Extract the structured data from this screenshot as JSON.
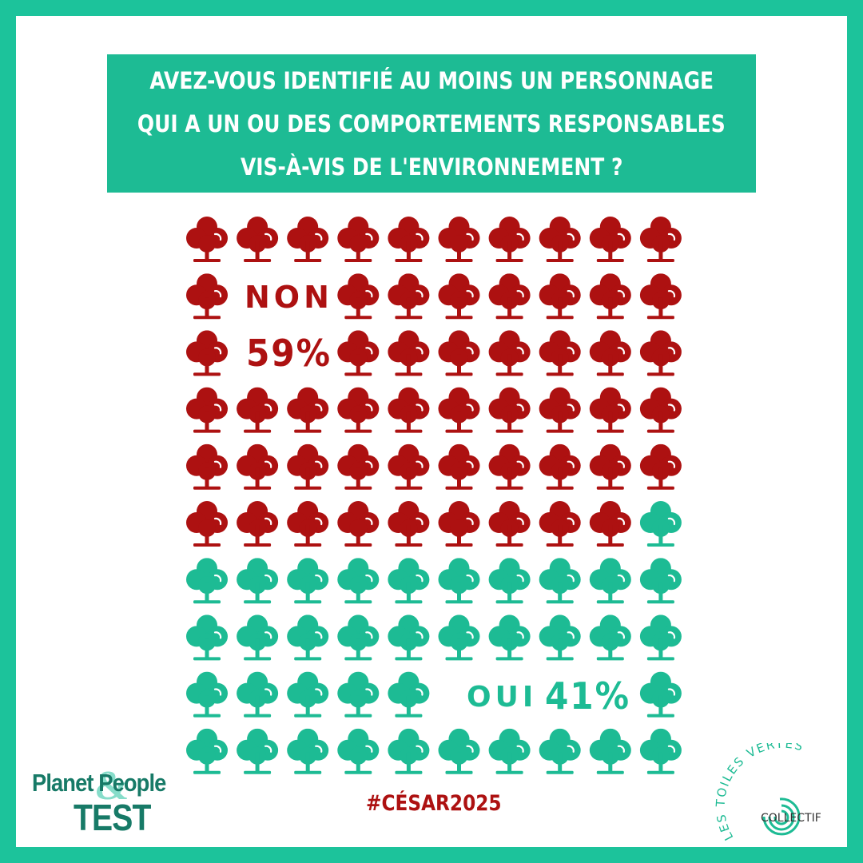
{
  "title_lines": [
    "AVEZ-VOUS IDENTIFIÉ AU MOINS UN PERSONNAGE",
    "QUI A UN OU DES COMPORTEMENTS RESPONSABLES",
    "VIS-À-VIS DE L'ENVIRONNEMENT ?"
  ],
  "labels": {
    "non": "NON",
    "non_pct": "59%",
    "oui": "OUI",
    "oui_pct": "41%"
  },
  "hashtag": "#CÉSAR2025",
  "logos": {
    "planet_people_top": "Planet People",
    "planet_people_amp": "&",
    "planet_people_bottom": "TEST",
    "toiles_vertes_arc": "LES TOILES VERTES",
    "toiles_vertes_sub": "COLLECTIF"
  },
  "colors": {
    "non": "#ad1111",
    "oui": "#1dbb94",
    "border": "#1cc39b"
  },
  "chart_data": {
    "type": "pictogram",
    "icon": "tree-icon",
    "total": 100,
    "columns": 10,
    "rows": 10,
    "series": [
      {
        "name": "NON",
        "value": 59,
        "percent": "59%",
        "color": "#ad1111"
      },
      {
        "name": "OUI",
        "value": 41,
        "percent": "41%",
        "color": "#1dbb94"
      }
    ],
    "label_gaps": [
      {
        "label": "NON",
        "row": 1,
        "columns": [
          1,
          2
        ]
      },
      {
        "label": "59%",
        "row": 2,
        "columns": [
          1,
          2
        ]
      },
      {
        "label": "OUI 41%",
        "row": 8,
        "columns": [
          5,
          6,
          7,
          8
        ]
      }
    ]
  }
}
